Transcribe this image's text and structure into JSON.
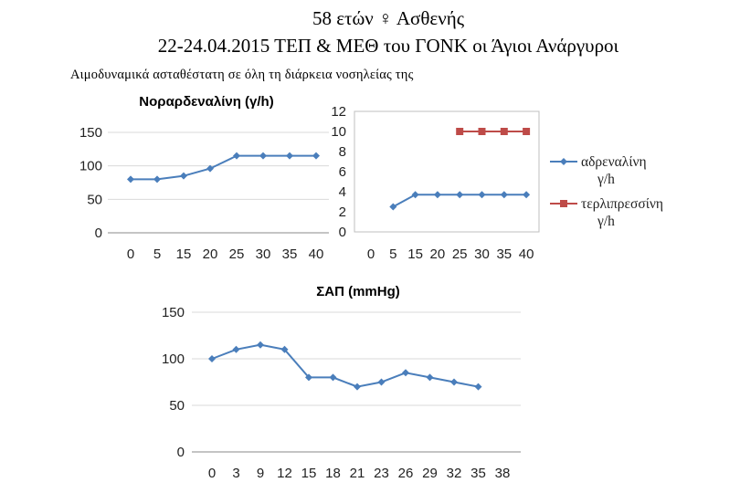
{
  "header": {
    "line1": "58 ετών ♀ Ασθενής",
    "line2": "22-24.04.2015 ΤΕΠ & ΜΕΘ του ΓΟΝΚ  οι Άγιοι Ανάργυροι",
    "note": "Αιμοδυναμικά ασταθέστατη σε όλη τη διάρκεια νοσηλείας της"
  },
  "chart_data": [
    {
      "type": "line",
      "title": "Νοραρδεναλίνη (γ/h)",
      "x": [
        0,
        5,
        15,
        20,
        25,
        30,
        35,
        40
      ],
      "series": [
        {
          "name": "Νοραρδεναλίνη",
          "values": [
            80,
            80,
            85,
            96,
            115,
            115,
            115,
            115
          ],
          "color": "#4a7ebb"
        }
      ],
      "ylim": [
        0,
        150
      ],
      "yticks": [
        0,
        50,
        100,
        150
      ],
      "xlabel": "",
      "ylabel": ""
    },
    {
      "type": "line",
      "title": "",
      "x": [
        0,
        5,
        15,
        20,
        25,
        30,
        35,
        40
      ],
      "series": [
        {
          "name": "αδρεναλίνη γ/h",
          "values": [
            null,
            2.5,
            3.7,
            3.7,
            3.7,
            3.7,
            3.7,
            3.7
          ],
          "color": "#4a7ebb",
          "marker": "diamond"
        },
        {
          "name": "τερλιπρεσσίνη γ/h",
          "values": [
            null,
            null,
            null,
            null,
            10,
            10,
            10,
            10
          ],
          "color": "#be4b48",
          "marker": "square"
        }
      ],
      "legend": [
        {
          "line1": "αδρεναλίνη",
          "line2": "γ/h"
        },
        {
          "line1": "τερλιπρεσσίνη",
          "line2": "γ/h"
        }
      ],
      "ylim": [
        0,
        12
      ],
      "yticks": [
        0,
        2,
        4,
        6,
        8,
        10,
        12
      ],
      "legend_position": "right"
    },
    {
      "type": "line",
      "title": "ΣΑΠ (mmHg)",
      "categories": [
        "0",
        "3",
        "9",
        "12",
        "15",
        "18",
        "21",
        "23",
        "26",
        "29",
        "32",
        "35",
        "38"
      ],
      "series": [
        {
          "name": "ΣΑΠ",
          "values": [
            100,
            110,
            115,
            110,
            80,
            80,
            70,
            75,
            85,
            80,
            75,
            70,
            null
          ],
          "color": "#4a7ebb"
        }
      ],
      "ylim": [
        0,
        150
      ],
      "yticks": [
        0,
        50,
        100,
        150
      ]
    }
  ]
}
